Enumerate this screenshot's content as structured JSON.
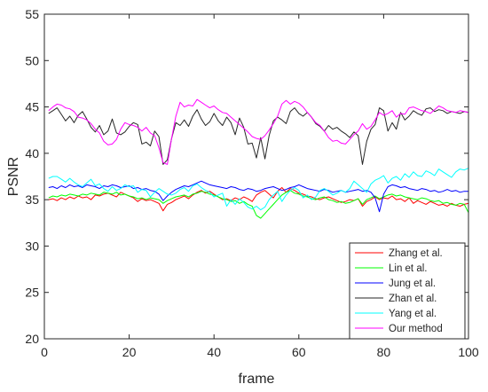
{
  "chart_data": {
    "type": "line",
    "title": "",
    "xlabel": "frame",
    "ylabel": "PSNR",
    "xlim": [
      0,
      100
    ],
    "ylim": [
      20,
      55
    ],
    "xticks": [
      0,
      20,
      40,
      60,
      80,
      100
    ],
    "yticks": [
      20,
      25,
      30,
      35,
      40,
      45,
      50,
      55
    ],
    "grid": false,
    "legend_position": "bottom-right",
    "x": [
      1,
      2,
      3,
      4,
      5,
      6,
      7,
      8,
      9,
      10,
      11,
      12,
      13,
      14,
      15,
      16,
      17,
      18,
      19,
      20,
      21,
      22,
      23,
      24,
      25,
      26,
      27,
      28,
      29,
      30,
      31,
      32,
      33,
      34,
      35,
      36,
      37,
      38,
      39,
      40,
      41,
      42,
      43,
      44,
      45,
      46,
      47,
      48,
      49,
      50,
      51,
      52,
      53,
      54,
      55,
      56,
      57,
      58,
      59,
      60,
      61,
      62,
      63,
      64,
      65,
      66,
      67,
      68,
      69,
      70,
      71,
      72,
      73,
      74,
      75,
      76,
      77,
      78,
      79,
      80,
      81,
      82,
      83,
      84,
      85,
      86,
      87,
      88,
      89,
      90,
      91,
      92,
      93,
      94,
      95,
      96,
      97,
      98,
      99,
      100
    ],
    "series": [
      {
        "name": "Zhang et al.",
        "color": "#ff0000",
        "values": [
          35.0,
          35.1,
          34.9,
          35.2,
          35.0,
          35.3,
          35.1,
          35.4,
          35.2,
          35.3,
          35.0,
          35.5,
          35.4,
          35.6,
          35.7,
          35.5,
          35.3,
          35.8,
          35.6,
          35.4,
          35.2,
          34.8,
          35.1,
          34.9,
          35.0,
          34.8,
          34.6,
          33.8,
          34.5,
          34.7,
          35.0,
          35.2,
          35.4,
          35.1,
          35.5,
          35.8,
          36.0,
          35.7,
          35.9,
          35.6,
          35.3,
          35.0,
          35.1,
          34.9,
          35.2,
          35.0,
          35.3,
          35.1,
          34.8,
          35.5,
          35.8,
          36.0,
          35.6,
          35.2,
          35.9,
          36.3,
          35.8,
          36.2,
          36.0,
          35.7,
          35.6,
          35.4,
          35.3,
          35.1,
          35.0,
          35.2,
          35.3,
          35.1,
          34.9,
          34.7,
          34.8,
          35.0,
          34.9,
          35.1,
          34.3,
          34.8,
          35.0,
          35.3,
          35.0,
          35.2,
          35.1,
          35.4,
          35.0,
          35.1,
          34.8,
          35.2,
          34.6,
          34.9,
          34.7,
          34.5,
          34.8,
          34.6,
          34.4,
          34.5,
          34.3,
          34.6,
          34.4,
          34.3,
          34.5,
          34.6
        ]
      },
      {
        "name": "Lin et al.",
        "color": "#00ff00",
        "values": [
          35.2,
          35.4,
          35.3,
          35.5,
          35.4,
          35.6,
          35.5,
          35.4,
          35.6,
          35.5,
          35.7,
          35.6,
          35.5,
          35.8,
          35.7,
          35.6,
          35.8,
          35.5,
          35.6,
          35.4,
          35.3,
          35.1,
          35.2,
          35.0,
          35.2,
          35.1,
          35.0,
          34.6,
          34.9,
          35.1,
          35.3,
          35.4,
          35.5,
          35.3,
          35.6,
          35.7,
          35.9,
          35.8,
          35.6,
          35.5,
          35.3,
          35.1,
          35.0,
          34.8,
          34.9,
          34.6,
          34.8,
          34.5,
          34.3,
          33.3,
          33.0,
          33.5,
          34.0,
          34.5,
          35.0,
          35.5,
          35.8,
          36.0,
          35.7,
          35.6,
          35.4,
          35.3,
          35.1,
          35.0,
          35.2,
          35.3,
          35.0,
          34.9,
          34.7,
          34.8,
          34.6,
          34.7,
          34.9,
          35.1,
          34.5,
          35.0,
          35.2,
          35.4,
          35.1,
          35.3,
          35.5,
          35.6,
          35.4,
          35.5,
          35.3,
          35.2,
          35.1,
          35.0,
          35.2,
          35.1,
          34.9,
          34.8,
          34.9,
          34.6,
          34.7,
          34.5,
          34.4,
          34.6,
          34.5,
          33.6
        ]
      },
      {
        "name": "Jung et al.",
        "color": "#0000ff",
        "values": [
          36.3,
          36.4,
          36.2,
          36.5,
          36.3,
          36.6,
          36.4,
          36.5,
          36.3,
          36.6,
          36.5,
          36.4,
          36.2,
          36.5,
          36.4,
          36.6,
          36.5,
          36.3,
          36.4,
          36.5,
          36.2,
          36.3,
          36.1,
          36.2,
          36.0,
          35.9,
          35.6,
          34.9,
          35.4,
          35.8,
          36.1,
          36.3,
          36.5,
          36.4,
          36.6,
          36.8,
          37.0,
          36.8,
          36.6,
          36.5,
          36.4,
          36.3,
          36.2,
          36.4,
          36.3,
          36.1,
          36.0,
          36.2,
          36.1,
          35.9,
          36.0,
          36.2,
          36.3,
          36.4,
          36.2,
          36.0,
          36.1,
          36.3,
          36.4,
          36.6,
          36.4,
          36.2,
          36.1,
          36.0,
          35.9,
          36.1,
          36.0,
          35.8,
          35.9,
          36.0,
          35.8,
          35.9,
          36.0,
          36.1,
          35.9,
          36.0,
          35.8,
          35.2,
          33.7,
          35.6,
          36.4,
          36.6,
          36.5,
          36.3,
          36.4,
          36.2,
          36.1,
          36.0,
          36.2,
          36.1,
          35.9,
          36.0,
          35.8,
          35.9,
          36.1,
          35.9,
          36.0,
          35.8,
          35.9,
          35.9
        ]
      },
      {
        "name": "Zhan et al.",
        "color": "#262626",
        "values": [
          44.3,
          44.6,
          44.9,
          44.2,
          43.5,
          44.0,
          43.3,
          44.1,
          44.5,
          43.7,
          42.8,
          42.3,
          43.0,
          42.0,
          42.4,
          43.7,
          42.2,
          42.0,
          42.3,
          42.9,
          43.3,
          43.1,
          41.0,
          41.2,
          40.8,
          42.4,
          41.8,
          38.8,
          39.3,
          41.6,
          43.3,
          43.0,
          43.6,
          42.9,
          44.0,
          44.7,
          43.7,
          43.0,
          43.4,
          44.3,
          43.5,
          43.0,
          43.9,
          43.3,
          42.0,
          43.8,
          42.8,
          41.0,
          41.1,
          39.5,
          41.7,
          39.4,
          41.9,
          43.5,
          43.9,
          43.6,
          43.2,
          44.5,
          44.9,
          44.3,
          44.0,
          44.4,
          43.9,
          43.2,
          42.9,
          42.4,
          43.0,
          42.6,
          42.8,
          42.4,
          42.1,
          41.7,
          42.3,
          41.9,
          38.8,
          41.3,
          42.6,
          43.1,
          44.9,
          44.6,
          42.4,
          43.3,
          42.6,
          44.4,
          43.6,
          44.0,
          44.6,
          44.3,
          44.1,
          44.8,
          44.9,
          44.5,
          44.7,
          44.6,
          44.3,
          44.5,
          44.4,
          44.3,
          44.5,
          44.4
        ]
      },
      {
        "name": "Yang et al.",
        "color": "#00ffff",
        "values": [
          37.3,
          37.5,
          37.5,
          37.2,
          36.9,
          37.3,
          36.9,
          36.6,
          36.4,
          36.8,
          37.2,
          36.5,
          36.7,
          36.2,
          35.9,
          36.4,
          36.0,
          36.2,
          36.6,
          36.4,
          36.5,
          35.8,
          36.1,
          36.0,
          35.3,
          35.8,
          36.2,
          35.9,
          35.6,
          35.5,
          35.7,
          36.1,
          36.3,
          35.9,
          36.5,
          36.7,
          36.3,
          36.0,
          35.8,
          35.3,
          35.5,
          35.7,
          34.3,
          35.0,
          34.5,
          35.1,
          34.7,
          34.2,
          34.0,
          34.3,
          33.9,
          34.2,
          35.0,
          35.5,
          35.9,
          34.8,
          35.5,
          36.0,
          36.3,
          36.0,
          35.2,
          35.5,
          35.0,
          35.3,
          36.0,
          36.2,
          35.9,
          35.5,
          35.7,
          36.0,
          35.8,
          36.2,
          37.0,
          36.6,
          36.2,
          35.8,
          36.7,
          37.1,
          37.3,
          37.6,
          36.8,
          37.3,
          37.5,
          37.1,
          37.8,
          37.4,
          38.0,
          37.6,
          37.5,
          38.1,
          37.9,
          37.6,
          38.3,
          38.0,
          37.7,
          37.4,
          38.0,
          38.3,
          38.2,
          38.4
        ]
      },
      {
        "name": "Our method",
        "color": "#ff00ff",
        "values": [
          44.6,
          45.0,
          45.3,
          45.2,
          44.9,
          44.8,
          44.5,
          43.9,
          43.8,
          43.6,
          43.2,
          42.6,
          42.2,
          41.3,
          40.9,
          41.0,
          41.5,
          42.6,
          43.3,
          43.1,
          43.0,
          42.8,
          42.4,
          42.8,
          42.2,
          41.9,
          40.6,
          39.0,
          38.8,
          41.6,
          44.0,
          45.5,
          45.0,
          45.2,
          45.1,
          45.8,
          45.5,
          45.2,
          44.9,
          45.1,
          44.7,
          44.4,
          44.3,
          43.9,
          43.5,
          43.1,
          42.7,
          42.3,
          41.8,
          41.6,
          41.5,
          41.9,
          42.5,
          43.2,
          44.0,
          45.3,
          45.7,
          45.3,
          45.6,
          45.4,
          45.0,
          44.4,
          43.9,
          43.3,
          43.0,
          42.4,
          41.7,
          41.3,
          41.4,
          41.1,
          41.0,
          41.5,
          42.0,
          42.4,
          43.2,
          42.6,
          42.9,
          43.6,
          44.4,
          44.1,
          44.3,
          44.6,
          43.9,
          44.3,
          44.2,
          44.9,
          45.0,
          44.8,
          44.6,
          44.5,
          44.3,
          44.7,
          45.1,
          44.9,
          44.6,
          44.5,
          44.4,
          44.6,
          44.5,
          44.4
        ]
      }
    ]
  }
}
